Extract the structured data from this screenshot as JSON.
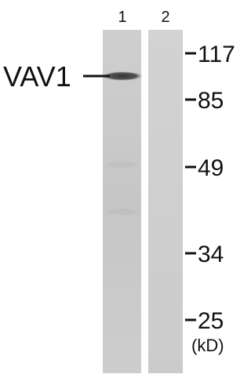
{
  "lanes": [
    "1",
    "2"
  ],
  "protein": "VAV1",
  "markers": [
    "117",
    "85",
    "49",
    "34",
    "25"
  ],
  "unit": "(kD)"
}
